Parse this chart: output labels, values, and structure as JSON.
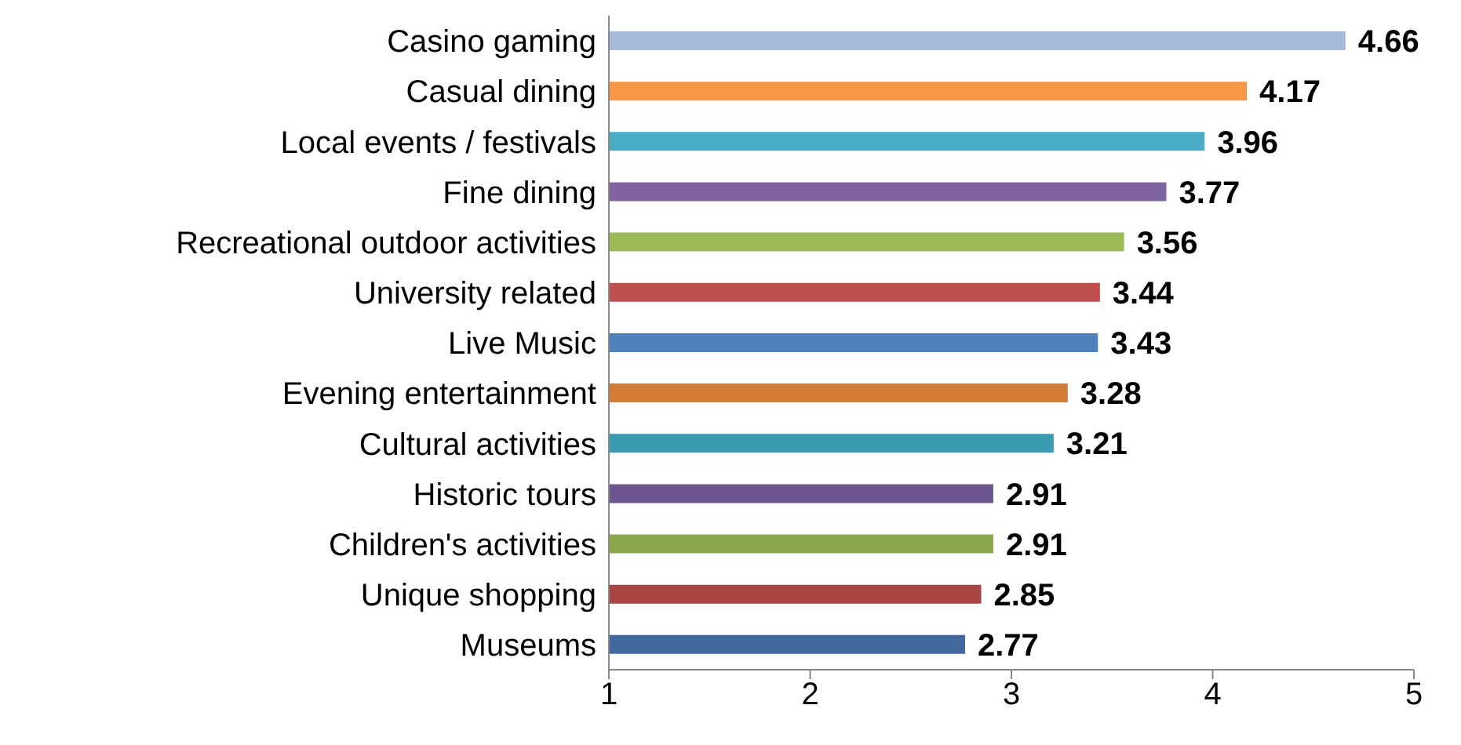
{
  "chart_data": {
    "type": "bar",
    "orientation": "horizontal",
    "categories": [
      "Casino gaming",
      "Casual dining",
      "Local events / festivals",
      "Fine dining",
      "Recreational outdoor activities",
      "University related",
      "Live Music",
      "Evening entertainment",
      "Cultural activities",
      "Historic tours",
      "Children's activities",
      "Unique shopping",
      "Museums"
    ],
    "values": [
      4.66,
      4.17,
      3.96,
      3.77,
      3.56,
      3.44,
      3.43,
      3.28,
      3.21,
      2.91,
      2.91,
      2.85,
      2.77
    ],
    "colors": [
      "#a9b9dc",
      "#f79646",
      "#4bacc6",
      "#8064a2",
      "#9bbb59",
      "#c0504d",
      "#4f81bd",
      "#d47b36",
      "#3a9bb1",
      "#6e5590",
      "#88a84b",
      "#a94543",
      "#43689e"
    ],
    "xlim": [
      1,
      5
    ],
    "xticks": [
      1,
      2,
      3,
      4,
      5
    ],
    "data_labels": true,
    "grid": false,
    "legend": false
  }
}
